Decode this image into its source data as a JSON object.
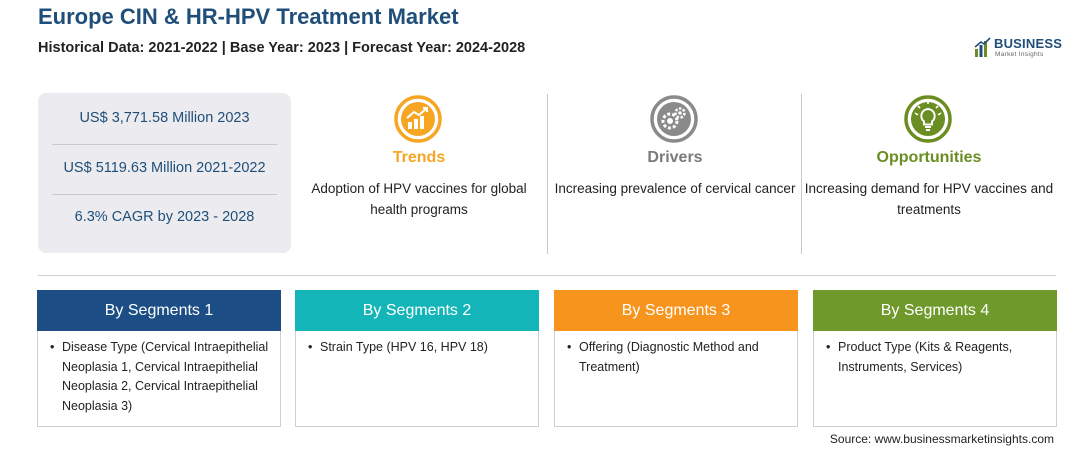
{
  "header": {
    "title": "Europe CIN & HR-HPV Treatment Market",
    "subtitle": "Historical Data: 2021-2022 | Base Year: 2023 | Forecast Year: 2024-2028"
  },
  "logo": {
    "main": "BUSINESS",
    "sub": "Market Insights"
  },
  "stats": [
    "US$ 3,771.58 Million 2023",
    "US$ 5119.63 Million 2021-2022",
    "6.3% CAGR by 2023 - 2028"
  ],
  "insights": [
    {
      "title": "Trends",
      "text": "Adoption of HPV vaccines for global health programs",
      "color": "#f6a623",
      "icon": "chart-trend-icon"
    },
    {
      "title": "Drivers",
      "text": "Increasing prevalence of cervical cancer",
      "color": "#8a8a8a",
      "icon": "gears-icon"
    },
    {
      "title": "Opportunities",
      "text": "Increasing demand for HPV vaccines and treatments",
      "color": "#6b8e23",
      "icon": "lightbulb-icon"
    }
  ],
  "segments": [
    {
      "title": "By Segments 1",
      "color": "#1c4e85",
      "items": [
        "Disease Type (Cervical Intraepithelial Neoplasia 1, Cervical Intraepithelial Neoplasia 2, Cervical Intraepithelial Neoplasia 3)"
      ]
    },
    {
      "title": "By Segments 2",
      "color": "#13b5b8",
      "items": [
        "Strain Type (HPV 16, HPV 18)"
      ]
    },
    {
      "title": "By Segments 3",
      "color": "#f7941d",
      "items": [
        "Offering (Diagnostic Method and Treatment)"
      ]
    },
    {
      "title": "By Segments 4",
      "color": "#6f9a2b",
      "items": [
        "Product Type (Kits & Reagents, Instruments, Services)"
      ]
    }
  ],
  "source": "Source: www.businessmarketinsights.com"
}
